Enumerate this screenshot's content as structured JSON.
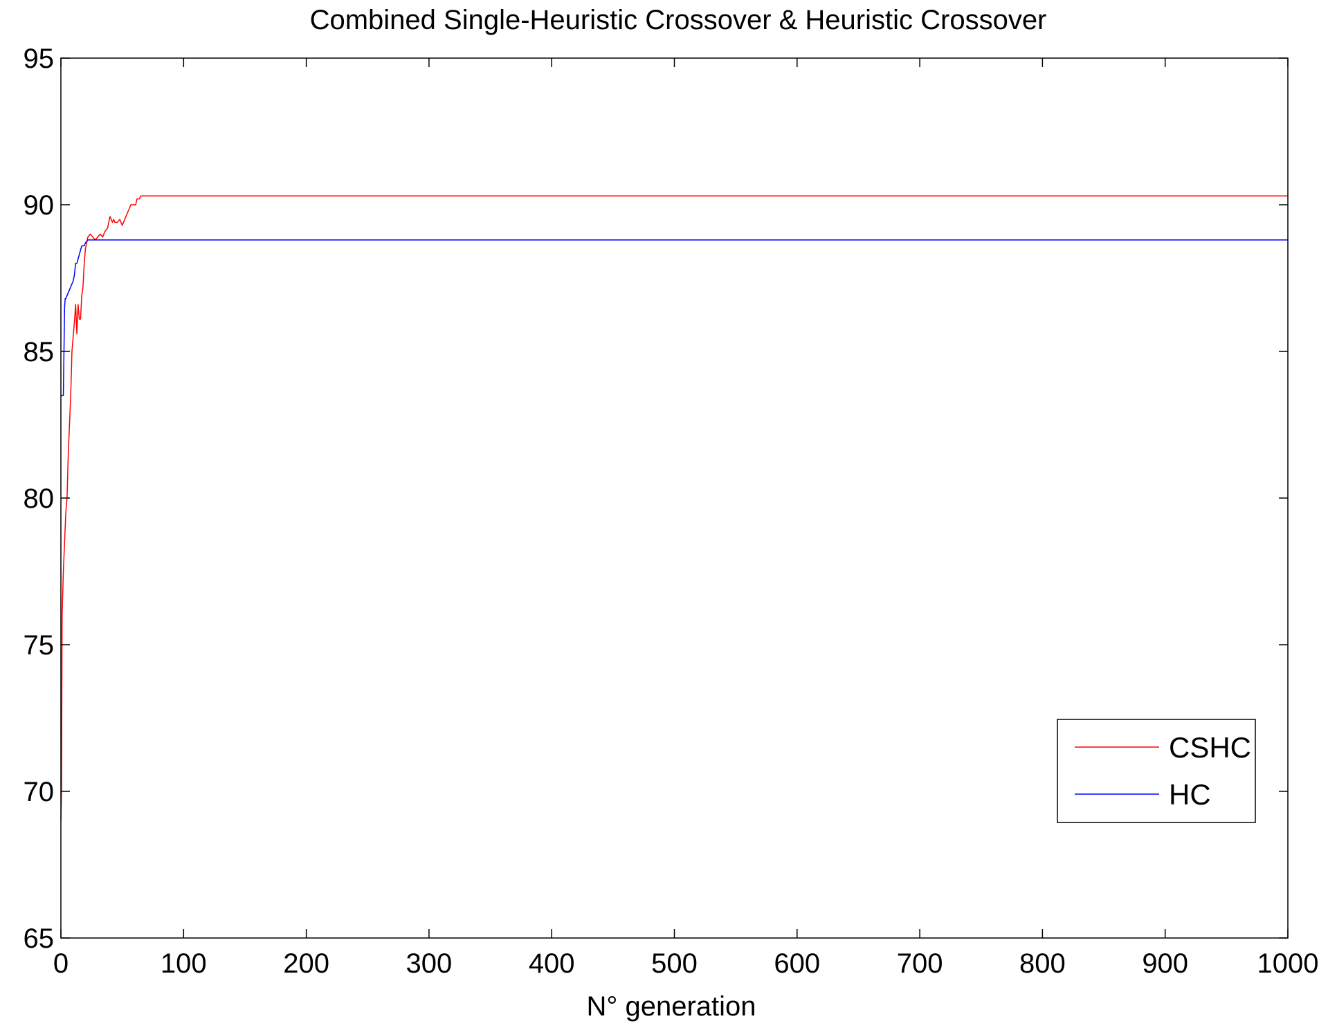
{
  "chart_data": {
    "type": "line",
    "title": "Combined Single-Heuristic Crossover & Heuristic Crossover",
    "xlabel": "N° generation",
    "ylabel": "",
    "xlim": [
      0,
      1000
    ],
    "ylim": [
      65,
      95
    ],
    "xticks": [
      0,
      100,
      200,
      300,
      400,
      500,
      600,
      700,
      800,
      900,
      1000
    ],
    "yticks": [
      65,
      70,
      75,
      80,
      85,
      90,
      95
    ],
    "xtick_labels": [
      "0",
      "100",
      "200",
      "300",
      "400",
      "500",
      "600",
      "700",
      "800",
      "900",
      "1000"
    ],
    "ytick_labels": [
      "65",
      "70",
      "75",
      "80",
      "85",
      "90",
      "95"
    ],
    "grid": false,
    "legend_position": "lower-right",
    "series": [
      {
        "name": "CSHC",
        "color": "#ff0000",
        "x": [
          0,
          0.5,
          1,
          2,
          3,
          4,
          5,
          6,
          7,
          8,
          9,
          10,
          11,
          12,
          13,
          14,
          15,
          16,
          17,
          18,
          19,
          20,
          22,
          24,
          26,
          28,
          30,
          32,
          34,
          36,
          38,
          40,
          42,
          43,
          44,
          46,
          48,
          50,
          52,
          53,
          55,
          57,
          59,
          61,
          62,
          64,
          65,
          66,
          68,
          70,
          1000
        ],
        "values": [
          69,
          70,
          76,
          77.5,
          78.5,
          79.5,
          80,
          81.5,
          82.5,
          83.5,
          85,
          85.5,
          86,
          86.6,
          85.6,
          86.6,
          86.1,
          86.1,
          86.9,
          87.2,
          88,
          88.5,
          88.9,
          89,
          88.9,
          88.8,
          88.9,
          89,
          88.9,
          89.1,
          89.2,
          89.6,
          89.4,
          89.5,
          89.4,
          89.4,
          89.5,
          89.3,
          89.5,
          89.6,
          89.8,
          90,
          90,
          90,
          90.2,
          90.2,
          90.3,
          90.3,
          90.3,
          90.3,
          90.3
        ]
      },
      {
        "name": "HC",
        "color": "#0000ff",
        "x": [
          0,
          2,
          2.5,
          3,
          3.5,
          4,
          6,
          8,
          10,
          11,
          12,
          13,
          15,
          17,
          19,
          20,
          22,
          25,
          1000
        ],
        "values": [
          83.5,
          83.5,
          85,
          86.5,
          86.8,
          86.8,
          87,
          87.2,
          87.4,
          87.6,
          88,
          88,
          88.3,
          88.6,
          88.6,
          88.7,
          88.8,
          88.8,
          88.8
        ]
      }
    ]
  }
}
